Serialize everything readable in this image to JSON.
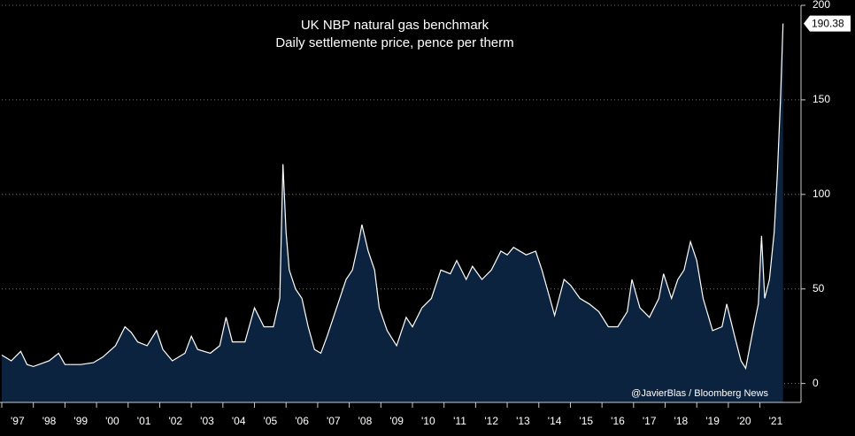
{
  "chart_data": {
    "type": "area",
    "title": "UK NBP natural gas benchmark",
    "subtitle": "Daily settlemente price, pence per therm",
    "source": "@JavierBlas / Bloomberg News",
    "series": [
      {
        "color": "#ffffff",
        "fill": "#0c2340",
        "x": [
          1997.0,
          1997.3,
          1997.6,
          1997.8,
          1998.0,
          1998.5,
          1998.8,
          1999.0,
          1999.5,
          1999.9,
          2000.2,
          2000.6,
          2000.9,
          2001.1,
          2001.3,
          2001.6,
          2001.9,
          2002.1,
          2002.4,
          2002.8,
          2003.0,
          2003.2,
          2003.6,
          2003.9,
          2004.1,
          2004.3,
          2004.7,
          2005.0,
          2005.3,
          2005.6,
          2005.8,
          2005.9,
          2006.0,
          2006.1,
          2006.3,
          2006.5,
          2006.7,
          2006.9,
          2007.1,
          2007.3,
          2007.6,
          2007.9,
          2008.1,
          2008.3,
          2008.4,
          2008.6,
          2008.8,
          2008.95,
          2009.2,
          2009.5,
          2009.8,
          2010.0,
          2010.3,
          2010.6,
          2010.9,
          2011.2,
          2011.4,
          2011.7,
          2011.9,
          2012.2,
          2012.5,
          2012.8,
          2013.0,
          2013.2,
          2013.6,
          2013.9,
          2014.1,
          2014.3,
          2014.5,
          2014.8,
          2015.0,
          2015.3,
          2015.6,
          2015.9,
          2016.2,
          2016.5,
          2016.8,
          2016.95,
          2017.2,
          2017.5,
          2017.8,
          2017.95,
          2018.2,
          2018.4,
          2018.6,
          2018.8,
          2019.0,
          2019.2,
          2019.5,
          2019.8,
          2019.95,
          2020.2,
          2020.4,
          2020.55,
          2020.8,
          2020.95,
          2021.05,
          2021.15,
          2021.3,
          2021.45,
          2021.55,
          2021.65,
          2021.73
        ],
        "values": [
          15,
          12,
          17,
          10,
          9,
          12,
          16,
          10,
          10,
          11,
          14,
          20,
          30,
          27,
          22,
          20,
          28,
          18,
          12,
          16,
          25,
          18,
          16,
          20,
          35,
          22,
          22,
          40,
          30,
          30,
          45,
          116,
          80,
          60,
          50,
          45,
          30,
          18,
          16,
          25,
          40,
          55,
          60,
          75,
          84,
          70,
          60,
          40,
          28,
          20,
          35,
          30,
          40,
          45,
          60,
          58,
          65,
          55,
          62,
          55,
          60,
          70,
          68,
          72,
          68,
          70,
          60,
          48,
          36,
          55,
          52,
          45,
          42,
          38,
          30,
          30,
          38,
          55,
          40,
          35,
          45,
          58,
          45,
          55,
          60,
          75,
          65,
          45,
          28,
          30,
          42,
          25,
          12,
          8,
          30,
          42,
          78,
          45,
          55,
          80,
          110,
          150,
          190.38
        ]
      }
    ],
    "xlim": [
      1997,
      2022.3
    ],
    "xticks": [
      {
        "value": 1997.5,
        "label": "'97"
      },
      {
        "value": 1998.5,
        "label": "'98"
      },
      {
        "value": 1999.5,
        "label": "'99"
      },
      {
        "value": 2000.5,
        "label": "'00"
      },
      {
        "value": 2001.5,
        "label": "'01"
      },
      {
        "value": 2002.5,
        "label": "'02"
      },
      {
        "value": 2003.5,
        "label": "'03"
      },
      {
        "value": 2004.5,
        "label": "'04"
      },
      {
        "value": 2005.5,
        "label": "'05"
      },
      {
        "value": 2006.5,
        "label": "'06"
      },
      {
        "value": 2007.5,
        "label": "'07"
      },
      {
        "value": 2008.5,
        "label": "'08"
      },
      {
        "value": 2009.5,
        "label": "'09"
      },
      {
        "value": 2010.5,
        "label": "'10"
      },
      {
        "value": 2011.5,
        "label": "'11"
      },
      {
        "value": 2012.5,
        "label": "'12"
      },
      {
        "value": 2013.5,
        "label": "'13"
      },
      {
        "value": 2014.5,
        "label": "'14"
      },
      {
        "value": 2015.5,
        "label": "'15"
      },
      {
        "value": 2016.5,
        "label": "'16"
      },
      {
        "value": 2017.5,
        "label": "'17"
      },
      {
        "value": 2018.5,
        "label": "'18"
      },
      {
        "value": 2019.5,
        "label": "'19"
      },
      {
        "value": 2020.5,
        "label": "'20"
      },
      {
        "value": 2021.5,
        "label": "'21"
      }
    ],
    "ylim": [
      -10,
      200
    ],
    "yticks": [
      0,
      50,
      100,
      150,
      200
    ],
    "grid": true
  }
}
